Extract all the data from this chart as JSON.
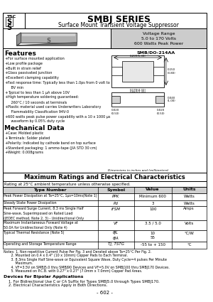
{
  "title_series": "SMBJ SERIES",
  "title_subtitle": "Surface Mount Transient Voltage Suppressor",
  "voltage_range_label": "Voltage Range",
  "voltage_range_value": "5.0 to 170 Volts",
  "power_value": "600 Watts Peak Power",
  "package_code": "SMB/DO-214AA",
  "features_title": "Features",
  "features": [
    "For surface mounted application",
    "Low profile package",
    "Built in strain relief",
    "Glass passivated junction",
    "Excellent clamping capability",
    "Fast response time: Typically less than 1.0ps from 0 volt to\n   BV min",
    "Typical to less than 1 μA above 10V",
    "High temperature soldering guaranteed:\n   260°C / 10 seconds at terminals",
    "Plastic material used carries Underwriters Laboratory\n   Flammability Classification 94V-0",
    "600 watts peak pulse power capability with a 10 x 1000 μs\n   waveform by 0.05% duty cycle"
  ],
  "mech_title": "Mechanical Data",
  "mech_items": [
    "Case: Molded plastic",
    "Terminals: Solder plated",
    "Polarity: Indicated by cathode band on top surface",
    "Standard packaging: 1 ammo-tape (JIA STD 30 cm)",
    "Weight: 0.008grams"
  ],
  "dim_note": "Dimensions in inches and (millimeters)",
  "max_ratings_title": "Maximum Ratings and Electrical Characteristics",
  "rating_note": "Rating at 25°C ambient temperature unless otherwise specified.",
  "table_headers": [
    "Type Number",
    "Symbol",
    "Value",
    "Units"
  ],
  "table_rows": [
    [
      "Peak Power Dissipation at Ta=25°C, 1μs=10ms(Note 1)",
      "PPK",
      "Minimum 600",
      "Watts"
    ],
    [
      "Steady State Power Dissipation",
      "Pd",
      "3",
      "Watts"
    ],
    [
      "Peak Forward Surge Current, 8.3 ms Single Half\nSine-wave, Superimposed on Rated Load\n(JEDEC method, Note 2, 3) - Unidirectional Only",
      "IFSM",
      "100",
      "Amps"
    ],
    [
      "Maximum Instantaneous Forward Voltage at\n50.0A for Unidirectional Only (Note 4)",
      "VF",
      "3.5 / 5.0",
      "Volts"
    ],
    [
      "Typical Thermal Resistance (Note 5)",
      "θJL\nθJA",
      "10\n55",
      "°C/W"
    ],
    [
      "Operating and Storage Temperature Range",
      "TJ, TSTG",
      "-55 to + 150",
      "°C"
    ]
  ],
  "notes": [
    "Notes: 1. Non-repetitive Current Pulse Per Fig. 3 and Derated above Ta=25°C Per Fig. 2.",
    "       2. Mounted on 0.4 x 0.4\" (10 x 10mm) Copper Pads to Each Terminal.",
    "       3. 8.3ms Single Half Sine-wave or Equivalent Square Wave, Duty Cycle=4 pulses Per Minute",
    "           Maximum.",
    "       4. VF=3.5V on SMBJ5.0 thru SMBJ90 Devices and VF=5.0V on SMBJ100 thru SMBJ170 Devices.",
    "       5. Measured on P.C.B. with 0.27\" x 0.27\" (7.0mm x 7.0mm) Copper Pad Areas."
  ],
  "devices_title": "Devices for Bipolar Applications",
  "devices_items": [
    "1. For Bidirectional Use C or CA Suffix for Types SMBJ5.0 through Types SMBJ170.",
    "2. Electrical Characteristics Apply in Both Directions."
  ],
  "page_number": "- 602 -",
  "bg_color": "#ffffff"
}
